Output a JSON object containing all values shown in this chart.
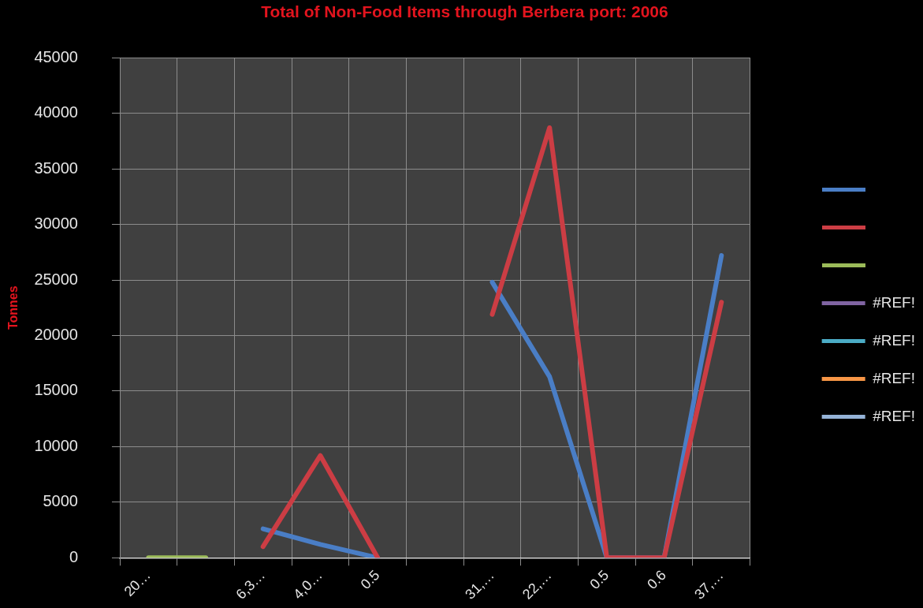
{
  "chart_data": {
    "type": "line",
    "title": "Total of Non-Food Items through Berbera port: 2006",
    "ylabel": "Tonnes",
    "categories": [
      "20…",
      null,
      "6,3…",
      "4,0…",
      "0.5",
      null,
      "31,…",
      "22,…",
      "0.5",
      "0.6",
      "37,…"
    ],
    "series": [
      {
        "color": "#4a7ec6",
        "values": [
          null,
          null,
          2600,
          1200,
          0,
          null,
          24800,
          16300,
          0,
          0,
          27200
        ]
      },
      {
        "color": "#cc3d44",
        "values": [
          null,
          null,
          1000,
          9200,
          0,
          null,
          21900,
          38700,
          0,
          0,
          23000
        ]
      },
      {
        "color": "#9bbb59",
        "values": [
          0,
          0,
          null,
          null,
          null,
          null,
          null,
          null,
          null,
          null,
          null
        ]
      },
      {
        "name": "#REF!",
        "color": "#8064a2",
        "values": [
          null,
          null,
          null,
          null,
          null,
          null,
          null,
          null,
          null,
          null,
          null
        ]
      },
      {
        "name": "#REF!",
        "color": "#4bacc6",
        "values": [
          null,
          null,
          null,
          null,
          null,
          null,
          null,
          null,
          null,
          null,
          null
        ]
      },
      {
        "name": "#REF!",
        "color": "#f79646",
        "values": [
          null,
          null,
          null,
          null,
          null,
          null,
          null,
          null,
          null,
          null,
          null
        ]
      },
      {
        "name": "#REF!",
        "color": "#95b3d7",
        "values": [
          null,
          null,
          null,
          null,
          null,
          null,
          null,
          null,
          null,
          null,
          null
        ]
      }
    ],
    "ylim": [
      0,
      45000
    ],
    "yticks": [
      0,
      5000,
      10000,
      15000,
      20000,
      25000,
      30000,
      35000,
      40000,
      45000
    ],
    "grid": true,
    "legend": "right",
    "marker": "none",
    "line_style": "solid"
  }
}
